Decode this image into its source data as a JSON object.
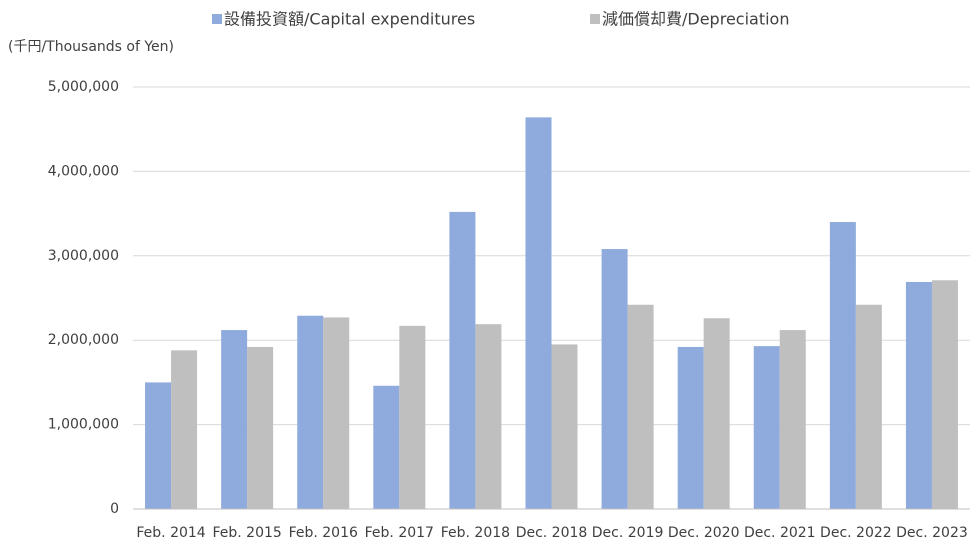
{
  "chart_data": {
    "type": "bar",
    "y_unit_label": "(千円/Thousands of Yen)",
    "categories": [
      "Feb. 2014",
      "Feb. 2015",
      "Feb. 2016",
      "Feb. 2017",
      "Feb. 2018",
      "Dec. 2018",
      "Dec. 2019",
      "Dec. 2020",
      "Dec. 2021",
      "Dec. 2022",
      "Dec. 2023"
    ],
    "series": [
      {
        "name": "設備投資額/Capital expenditures",
        "color": "#8faadc",
        "values": [
          1500000,
          2120000,
          2290000,
          1460000,
          3520000,
          4640000,
          3080000,
          1920000,
          1930000,
          3400000,
          2690000
        ]
      },
      {
        "name": "減価償却費/Depreciation",
        "color": "#bfbfbf",
        "values": [
          1880000,
          1920000,
          2270000,
          2170000,
          2190000,
          1950000,
          2420000,
          2260000,
          2120000,
          2420000,
          2710000
        ]
      }
    ],
    "ylim": [
      0,
      5000000
    ],
    "yticks": [
      0,
      {
        "value": 1000000,
        "label": "1,000,000"
      },
      {
        "value": 2000000,
        "label": "2,000,000"
      },
      {
        "value": 3000000,
        "label": "3,000,000"
      },
      {
        "value": 4000000,
        "label": "4,000,000"
      },
      {
        "value": 5000000,
        "label": "5,000,000"
      }
    ],
    "grid": true,
    "legend": "top"
  }
}
